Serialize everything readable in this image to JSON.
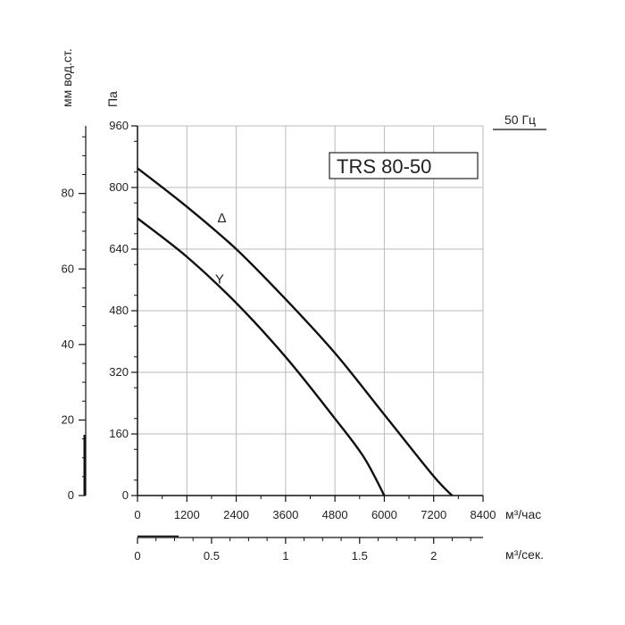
{
  "chart_data": {
    "type": "line",
    "title": "TRS 80-50",
    "frequency_label": "50 Гц",
    "xlabel": "м³/час",
    "x_flow_label": "м³/сек.",
    "ylabel": "Па",
    "y_mm_label": "мм вод.ст.",
    "xlim": [
      0,
      8400
    ],
    "ylim": [
      0,
      960
    ],
    "x_ticks": [
      "0",
      "1200",
      "2400",
      "3600",
      "4800",
      "6000",
      "7200",
      "8400"
    ],
    "y_ticks": [
      "0",
      "160",
      "320",
      "480",
      "640",
      "800",
      "960"
    ],
    "x_flow_ticks": [
      "0",
      "0.5",
      "1",
      "1.5",
      "2"
    ],
    "y_mm_ticks": [
      "0",
      "20",
      "40",
      "60",
      "80"
    ],
    "grid": true,
    "series": [
      {
        "name": "Δ",
        "x": [
          0,
          1200,
          2400,
          3600,
          4800,
          6000,
          7200,
          7650
        ],
        "y": [
          850,
          750,
          640,
          510,
          370,
          210,
          50,
          0
        ]
      },
      {
        "name": "Y",
        "x": [
          0,
          1200,
          2400,
          3600,
          4800,
          5500,
          6000
        ],
        "y": [
          720,
          620,
          500,
          360,
          200,
          100,
          0
        ]
      }
    ]
  },
  "colors": {
    "line": "#111111",
    "grid": "#bbbbbb",
    "text": "#222222"
  }
}
